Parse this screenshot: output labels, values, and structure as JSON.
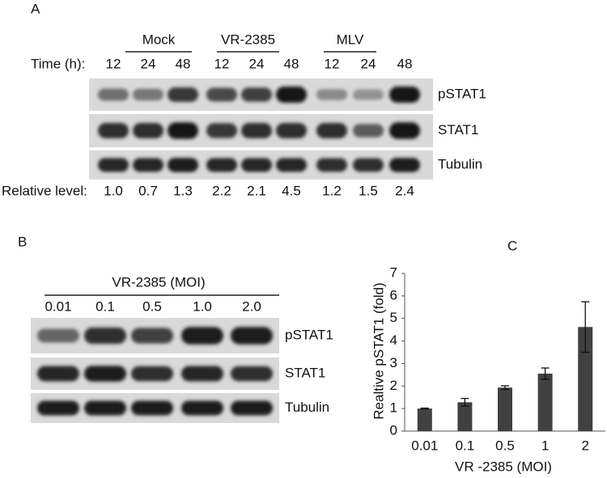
{
  "panel_a": {
    "label": "A",
    "groups": [
      "Mock",
      "VR-2385",
      "MLV"
    ],
    "time_label": "Time (h):",
    "times": [
      "12",
      "24",
      "48",
      "12",
      "24",
      "48",
      "12",
      "24",
      "48"
    ],
    "rows": [
      "pSTAT1",
      "STAT1",
      "Tubulin"
    ],
    "relative_label": "Relative level:",
    "relative_levels": [
      "1.0",
      "0.7",
      "1.3",
      "2.2",
      "2.1",
      "4.5",
      "1.2",
      "1.5",
      "2.4"
    ]
  },
  "panel_b": {
    "label": "B",
    "title": "VR-2385 (MOI)",
    "moi": [
      "0.01",
      "0.1",
      "0.5",
      "1.0",
      "2.0"
    ],
    "rows": [
      "pSTAT1",
      "STAT1",
      "Tubulin"
    ]
  },
  "chart_data": {
    "type": "bar",
    "panel_label": "C",
    "ylabel": "Realtive pSTAT1 (fold)",
    "xlabel": "VR -2385 (MOI)",
    "categories": [
      "0.01",
      "0.1",
      "0.5",
      "1",
      "2"
    ],
    "values": [
      1.0,
      1.28,
      1.93,
      2.55,
      4.62
    ],
    "errors": [
      0.02,
      0.17,
      0.08,
      0.25,
      1.12
    ],
    "color": "#404040",
    "ylim": [
      0,
      7
    ],
    "yticks": [
      0,
      1,
      2,
      3,
      4,
      5,
      6,
      7
    ]
  }
}
